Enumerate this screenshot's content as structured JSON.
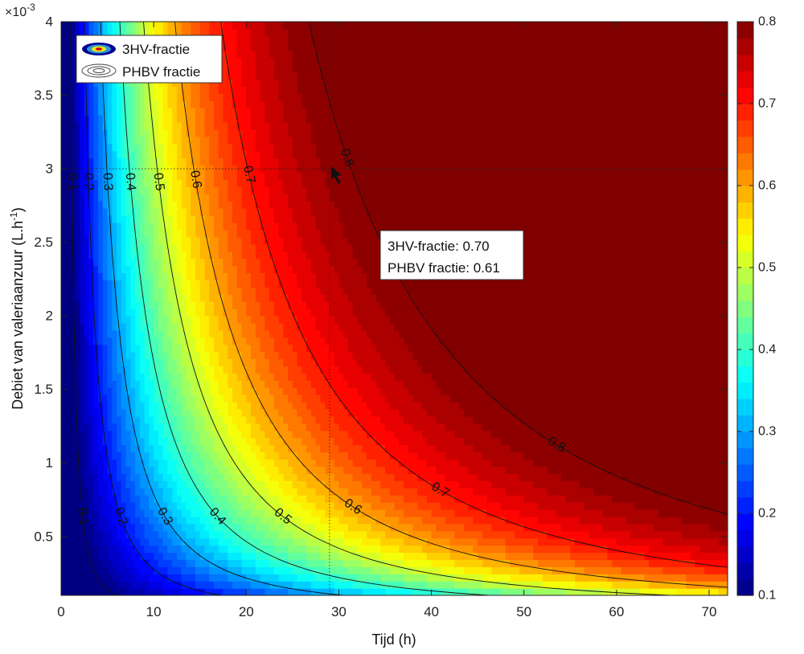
{
  "chart_data": {
    "type": "heatmap",
    "subtype": "filled-contour",
    "xlabel": "Tijd  (h)",
    "ylabel": "Debiet van valeriaanzuur (L.h",
    "ylabel_sup": "-1",
    "ylabel_close": ")",
    "y_exponent": "×10",
    "y_exponent_sup": "-3",
    "xlim": [
      0,
      72
    ],
    "ylim": [
      0.0001,
      0.004
    ],
    "x_ticks": [
      "0",
      "10",
      "20",
      "30",
      "40",
      "50",
      "60",
      "70"
    ],
    "y_ticks": [
      "0.5",
      "1",
      "1.5",
      "2",
      "2.5",
      "3",
      "3.5",
      "4"
    ],
    "colorbar": {
      "range": [
        0.1,
        0.8
      ],
      "ticks": [
        "0.1",
        "0.2",
        "0.3",
        "0.4",
        "0.5",
        "0.6",
        "0.7",
        "0.8"
      ],
      "colormap": "jet"
    },
    "legend": {
      "position": "top-left",
      "entries": [
        "3HV-fractie",
        "PHBV fractie"
      ]
    },
    "contour_levels": [
      "0.1",
      "0.2",
      "0.3",
      "0.4",
      "0.5",
      "0.6",
      "0.7",
      "0.8"
    ],
    "datatip": {
      "x": 29,
      "y": 0.003,
      "line1": "3HV-fractie: 0.70",
      "line2": "PHBV fractie: 0.61"
    }
  }
}
